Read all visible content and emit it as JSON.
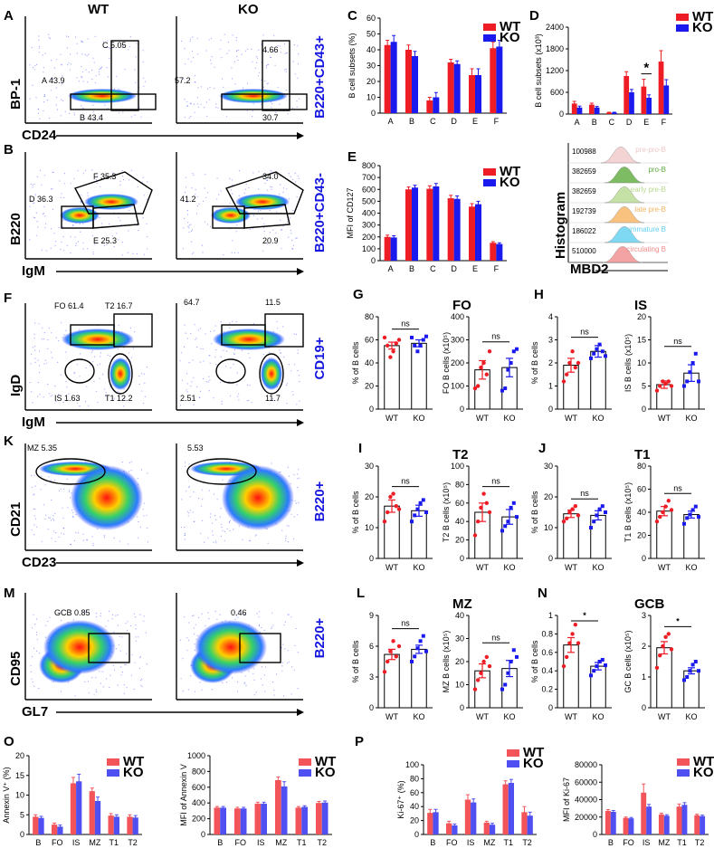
{
  "figure": {
    "panels": {
      "A": "A",
      "B": "B",
      "C": "C",
      "D": "D",
      "E": "E",
      "F": "F",
      "G": "G",
      "H": "H",
      "I": "I",
      "J": "J",
      "K": "K",
      "L": "L",
      "M": "M",
      "N": "N",
      "O": "O",
      "P": "P"
    },
    "col_wt": "WT",
    "col_ko": "KO",
    "side_labels": [
      "B220+CD43+",
      "B220+CD43-",
      "CD19+",
      "B220+",
      "B220+"
    ],
    "flow": [
      {
        "id": "A",
        "y": "BP-1",
        "x": "CD24",
        "wt": [
          "C 5.05",
          "A 43.9",
          "B 43.4"
        ],
        "ko": [
          "4.66",
          "57.2",
          "30.7"
        ]
      },
      {
        "id": "B",
        "y": "B220",
        "x": "IgM",
        "wt": [
          "F 35.3",
          "D 36.3",
          "E 25.3"
        ],
        "ko": [
          "34.0",
          "41.2",
          "20.9"
        ]
      },
      {
        "id": "F",
        "y": "IgD",
        "x": "IgM",
        "wt": [
          "FO 61.4",
          "T2 16.7",
          "IS 1.63",
          "T1 12.2"
        ],
        "ko": [
          "64.7",
          "11.5",
          "2.51",
          "11.7"
        ]
      },
      {
        "id": "K",
        "y": "CD21",
        "x": "CD23",
        "wt": [
          "MZ 5.35"
        ],
        "ko": [
          "5.53"
        ]
      },
      {
        "id": "M",
        "y": "CD95",
        "x": "GL7",
        "wt": [
          "GCB 0.85"
        ],
        "ko": [
          "0.46"
        ]
      }
    ],
    "histogram": {
      "ylabel": "Histogram",
      "xlabel": "MBD2",
      "rows": [
        {
          "n": "100988",
          "name": "pre-pro-B",
          "color": "#f0c8c8"
        },
        {
          "n": "382659",
          "name": "pro-B",
          "color": "#5cab3c"
        },
        {
          "n": "382659",
          "name": "early pre-B",
          "color": "#b7d98f"
        },
        {
          "n": "192739",
          "name": "late pre-B",
          "color": "#f7b35f"
        },
        {
          "n": "186022",
          "name": "immature B",
          "color": "#5fd0ef"
        },
        {
          "n": "510000",
          "name": "circulating B",
          "color": "#f08c8c"
        }
      ]
    },
    "colors": {
      "wt": "#ee1c24",
      "ko": "#1a1aee",
      "wt_light": "#f2545a",
      "ko_light": "#5050f2",
      "ns": "ns",
      "star": "*"
    }
  },
  "chart_data": [
    {
      "id": "C",
      "type": "bar",
      "ylabel": "B cell subsets (%)",
      "categories": [
        "A",
        "B",
        "C",
        "D",
        "E",
        "F"
      ],
      "ylim": [
        0,
        60
      ],
      "yticks": [
        0,
        10,
        20,
        30,
        40,
        50,
        60
      ],
      "series": [
        {
          "name": "WT",
          "values": [
            43,
            40,
            8,
            32,
            24,
            41
          ],
          "err": [
            3,
            3,
            2,
            2,
            4,
            4
          ]
        },
        {
          "name": "KO",
          "values": [
            45,
            36,
            10,
            31,
            24,
            42
          ],
          "err": [
            4,
            3,
            3,
            2,
            4,
            4
          ]
        }
      ]
    },
    {
      "id": "D",
      "type": "bar",
      "ylabel": "B cell subsets (x10³)",
      "categories": [
        "A",
        "B",
        "C",
        "D",
        "E",
        "F"
      ],
      "ylim": [
        0,
        2400
      ],
      "yticks": [
        0,
        600,
        1200,
        1800,
        2400
      ],
      "series": [
        {
          "name": "WT",
          "values": [
            290,
            260,
            40,
            1050,
            760,
            1450
          ],
          "err": [
            60,
            40,
            10,
            120,
            200,
            300
          ]
        },
        {
          "name": "KO",
          "values": [
            180,
            180,
            40,
            600,
            450,
            790
          ],
          "err": [
            40,
            30,
            10,
            80,
            80,
            160
          ]
        }
      ],
      "annotations": [
        {
          "category": "E",
          "text": "*"
        }
      ]
    },
    {
      "id": "E",
      "type": "bar",
      "ylabel": "MFI of CD127",
      "categories": [
        "A",
        "B",
        "C",
        "D",
        "E",
        "F"
      ],
      "ylim": [
        0,
        800
      ],
      "yticks": [
        0,
        100,
        200,
        300,
        400,
        500,
        600,
        700,
        800
      ],
      "series": [
        {
          "name": "WT",
          "values": [
            200,
            600,
            605,
            525,
            455,
            150
          ],
          "err": [
            15,
            20,
            25,
            25,
            25,
            10
          ]
        },
        {
          "name": "KO",
          "values": [
            195,
            615,
            625,
            520,
            475,
            140
          ],
          "err": [
            15,
            20,
            25,
            25,
            25,
            10
          ]
        }
      ]
    },
    {
      "id": "G1",
      "type": "scatter",
      "ylabel": "% of B cells",
      "title": "",
      "categories": [
        "WT",
        "KO"
      ],
      "ylim": [
        0,
        80
      ],
      "yticks": [
        0,
        20,
        40,
        60,
        80
      ],
      "means": [
        55,
        57
      ],
      "sems": [
        3,
        3
      ],
      "sig": "ns",
      "points": [
        [
          62,
          55,
          45,
          50,
          57,
          60
        ],
        [
          62,
          55,
          50,
          55,
          60,
          63
        ]
      ]
    },
    {
      "id": "G2",
      "type": "scatter",
      "ylabel": "FO B cells (x10⁵)",
      "title": "FO",
      "categories": [
        "WT",
        "KO"
      ],
      "ylim": [
        0,
        400
      ],
      "yticks": [
        0,
        100,
        200,
        300,
        400
      ],
      "means": [
        170,
        180
      ],
      "sems": [
        40,
        40
      ],
      "sig": "ns",
      "points": [
        [
          90,
          100,
          180,
          200,
          150,
          250
        ],
        [
          80,
          90,
          170,
          200,
          250,
          260
        ]
      ]
    },
    {
      "id": "H1",
      "type": "scatter",
      "ylabel": "% of B cells",
      "title": "",
      "categories": [
        "WT",
        "KO"
      ],
      "ylim": [
        0,
        4
      ],
      "yticks": [
        0,
        1,
        2,
        3,
        4
      ],
      "means": [
        1.9,
        2.5
      ],
      "sems": [
        0.3,
        0.25
      ],
      "sig": "ns",
      "points": [
        [
          1.2,
          1.5,
          2.0,
          2.5,
          1.8,
          2.0
        ],
        [
          2.2,
          2.4,
          2.6,
          2.8,
          2.5,
          2.3
        ]
      ]
    },
    {
      "id": "H2",
      "type": "scatter",
      "ylabel": "IS B cells (x10⁵)",
      "title": "IS",
      "categories": [
        "WT",
        "KO"
      ],
      "ylim": [
        0,
        20
      ],
      "yticks": [
        0,
        5,
        10,
        15,
        20
      ],
      "means": [
        5.3,
        7.8
      ],
      "sems": [
        0.8,
        1.8
      ],
      "sig": "ns",
      "points": [
        [
          4,
          5,
          6,
          5.5,
          6,
          5
        ],
        [
          5,
          6,
          8,
          10,
          12,
          6
        ]
      ]
    },
    {
      "id": "I1",
      "type": "scatter",
      "ylabel": "% of B cells",
      "title": "",
      "categories": [
        "WT",
        "KO"
      ],
      "ylim": [
        0,
        30
      ],
      "yticks": [
        0,
        10,
        20,
        30
      ],
      "means": [
        17,
        15.5
      ],
      "sems": [
        2,
        1.8
      ],
      "sig": "ns",
      "points": [
        [
          12,
          15,
          20,
          21,
          17,
          16
        ],
        [
          12,
          14,
          16,
          18,
          19,
          15
        ]
      ]
    },
    {
      "id": "I2",
      "type": "scatter",
      "ylabel": "T2 B cells (x10⁵)",
      "title": "T2",
      "categories": [
        "WT",
        "KO"
      ],
      "ylim": [
        0,
        100
      ],
      "yticks": [
        0,
        20,
        40,
        60,
        80,
        100
      ],
      "means": [
        50,
        45
      ],
      "sems": [
        10,
        8
      ],
      "sig": "ns",
      "points": [
        [
          25,
          40,
          55,
          70,
          60,
          50
        ],
        [
          30,
          35,
          40,
          55,
          60,
          45
        ]
      ]
    },
    {
      "id": "J1",
      "type": "scatter",
      "ylabel": "% of B cells",
      "title": "",
      "categories": [
        "WT",
        "KO"
      ],
      "ylim": [
        0,
        30
      ],
      "yticks": [
        0,
        10,
        20,
        30
      ],
      "means": [
        14.5,
        14
      ],
      "sems": [
        1.2,
        1.5
      ],
      "sig": "ns",
      "points": [
        [
          12,
          13,
          15,
          16,
          17,
          14
        ],
        [
          10,
          12,
          14,
          16,
          17,
          15
        ]
      ]
    },
    {
      "id": "J2",
      "type": "scatter",
      "ylabel": "T1 B cells (x10⁵)",
      "title": "T1",
      "categories": [
        "WT",
        "KO"
      ],
      "ylim": [
        0,
        80
      ],
      "yticks": [
        0,
        20,
        40,
        60,
        80
      ],
      "means": [
        41,
        38
      ],
      "sems": [
        4,
        3
      ],
      "sig": "ns",
      "points": [
        [
          32,
          36,
          40,
          45,
          50,
          42
        ],
        [
          30,
          35,
          38,
          42,
          45,
          36
        ]
      ]
    },
    {
      "id": "L1",
      "type": "scatter",
      "ylabel": "% of B cells",
      "title": "",
      "categories": [
        "WT",
        "KO"
      ],
      "ylim": [
        0,
        9
      ],
      "yticks": [
        0,
        3,
        6,
        9
      ],
      "means": [
        5.2,
        5.7
      ],
      "sems": [
        0.5,
        0.4
      ],
      "sig": "ns",
      "points": [
        [
          3.5,
          4.5,
          5.5,
          6.5,
          5.0,
          6.0
        ],
        [
          4.5,
          5.0,
          5.8,
          6.5,
          7.0,
          5.5
        ]
      ]
    },
    {
      "id": "L2",
      "type": "scatter",
      "ylabel": "MZ B cells (x10⁵)",
      "title": "MZ",
      "categories": [
        "WT",
        "KO"
      ],
      "ylim": [
        0,
        40
      ],
      "yticks": [
        0,
        10,
        20,
        30,
        40
      ],
      "means": [
        16,
        17
      ],
      "sems": [
        3,
        3.5
      ],
      "sig": "ns",
      "points": [
        [
          8,
          12,
          15,
          20,
          22,
          18
        ],
        [
          8,
          10,
          15,
          20,
          25,
          22
        ]
      ]
    },
    {
      "id": "N1",
      "type": "scatter",
      "ylabel": "% of B cells",
      "title": "",
      "categories": [
        "WT",
        "KO"
      ],
      "ylim": [
        0,
        1.0
      ],
      "yticks": [
        0,
        0.2,
        0.4,
        0.6,
        0.8,
        1.0
      ],
      "means": [
        0.68,
        0.45
      ],
      "sems": [
        0.08,
        0.04
      ],
      "sig": "*",
      "points": [
        [
          0.45,
          0.55,
          0.7,
          0.8,
          0.9,
          0.7
        ],
        [
          0.35,
          0.4,
          0.45,
          0.5,
          0.52,
          0.46
        ]
      ]
    },
    {
      "id": "N2",
      "type": "scatter",
      "ylabel": "GC B cells (x10⁵)",
      "title": "GCB",
      "categories": [
        "WT",
        "KO"
      ],
      "ylim": [
        0,
        3
      ],
      "yticks": [
        0,
        1,
        2,
        3
      ],
      "means": [
        1.95,
        1.2
      ],
      "sems": [
        0.2,
        0.1
      ],
      "sig": "*",
      "points": [
        [
          1.3,
          1.7,
          2.0,
          2.3,
          2.4,
          1.9
        ],
        [
          0.9,
          1.0,
          1.2,
          1.4,
          1.5,
          1.2
        ]
      ]
    },
    {
      "id": "O1",
      "type": "bar",
      "ylabel": "Annexin V⁺ (%)",
      "categories": [
        "B",
        "FO",
        "IS",
        "MZ",
        "T1",
        "T2"
      ],
      "ylim": [
        0,
        20
      ],
      "yticks": [
        0,
        5,
        10,
        15,
        20
      ],
      "series": [
        {
          "name": "WT",
          "values": [
            4.5,
            2.5,
            13,
            11,
            4.8,
            4.5
          ],
          "err": [
            0.5,
            0.4,
            1.5,
            0.8,
            0.5,
            0.5
          ]
        },
        {
          "name": "KO",
          "values": [
            4.2,
            2.0,
            13.5,
            8.5,
            4.5,
            4.3
          ],
          "err": [
            0.4,
            0.4,
            1.8,
            1.0,
            0.5,
            0.5
          ]
        }
      ]
    },
    {
      "id": "O2",
      "type": "bar",
      "ylabel": "MFI of Annexin V",
      "categories": [
        "B",
        "FO",
        "IS",
        "MZ",
        "T1",
        "T2"
      ],
      "ylim": [
        0,
        1000
      ],
      "yticks": [
        0,
        200,
        400,
        600,
        800,
        1000
      ],
      "series": [
        {
          "name": "WT",
          "values": [
            340,
            330,
            390,
            690,
            340,
            400
          ],
          "err": [
            15,
            15,
            20,
            40,
            15,
            20
          ]
        },
        {
          "name": "KO",
          "values": [
            340,
            330,
            390,
            610,
            350,
            405
          ],
          "err": [
            15,
            15,
            20,
            60,
            15,
            20
          ]
        }
      ]
    },
    {
      "id": "P1",
      "type": "bar",
      "ylabel": "Ki-67⁺ (%)",
      "categories": [
        "B",
        "FO",
        "IS",
        "MZ",
        "T1",
        "T2"
      ],
      "ylim": [
        0,
        100
      ],
      "yticks": [
        0,
        20,
        40,
        60,
        80,
        100
      ],
      "series": [
        {
          "name": "WT",
          "values": [
            31,
            16,
            50,
            17,
            72,
            32
          ],
          "err": [
            5,
            3,
            7,
            2,
            5,
            8
          ]
        },
        {
          "name": "KO",
          "values": [
            32,
            13,
            46,
            14,
            74,
            27
          ],
          "err": [
            4,
            2,
            5,
            2,
            5,
            5
          ]
        }
      ]
    },
    {
      "id": "P2",
      "type": "bar",
      "ylabel": "MFI of Ki-67",
      "categories": [
        "B",
        "FO",
        "IS",
        "MZ",
        "T1",
        "T2"
      ],
      "ylim": [
        0,
        80000
      ],
      "yticks": [
        0,
        20000,
        40000,
        60000,
        80000
      ],
      "series": [
        {
          "name": "WT",
          "values": [
            27000,
            19000,
            48000,
            23000,
            32000,
            22000
          ],
          "err": [
            1500,
            1000,
            10000,
            1500,
            3000,
            1200
          ]
        },
        {
          "name": "KO",
          "values": [
            26000,
            18500,
            32000,
            21500,
            34000,
            21000
          ],
          "err": [
            1500,
            1000,
            2500,
            1200,
            2500,
            1200
          ]
        }
      ]
    }
  ]
}
